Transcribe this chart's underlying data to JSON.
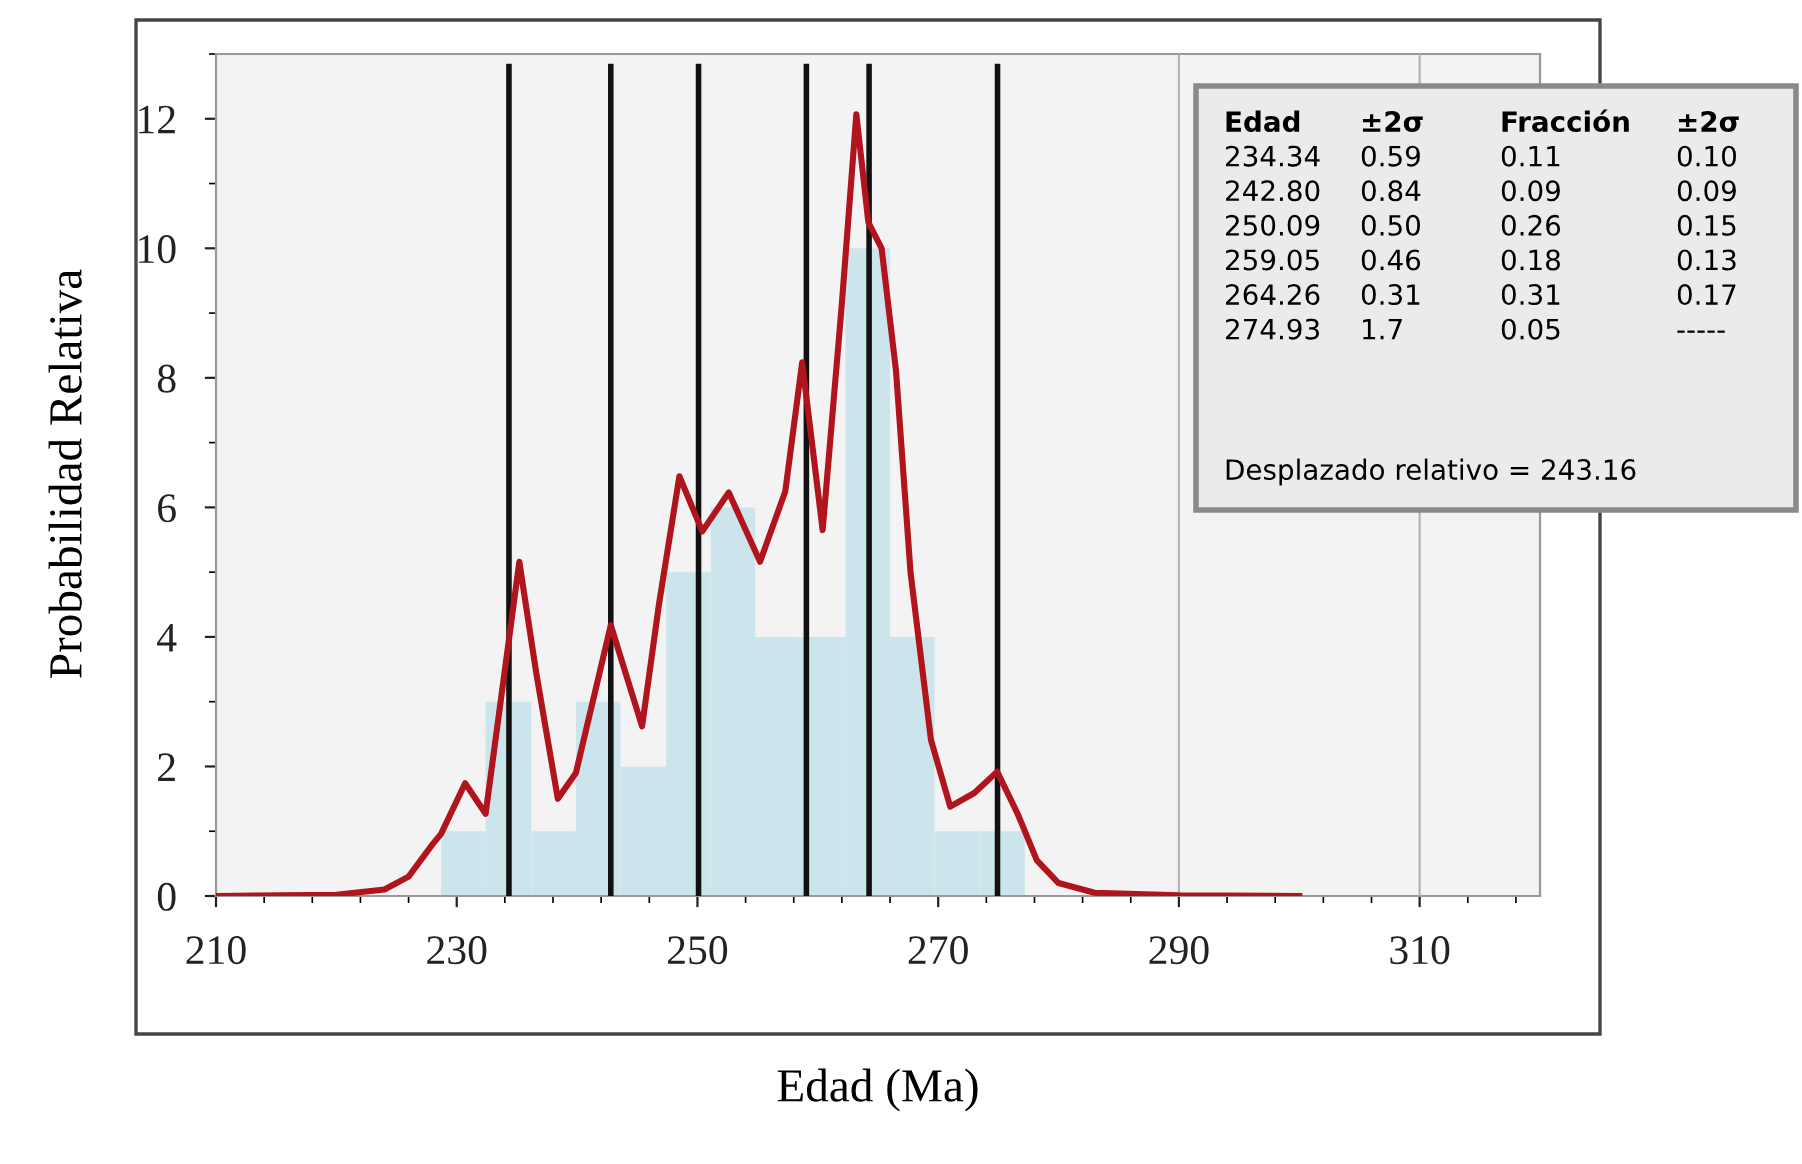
{
  "chart_data": {
    "type": "histogram",
    "xlabel": "Edad (Ma)",
    "ylabel": "Probabilidad Relativa",
    "bins": [
      228.7,
      232.4,
      236.2,
      239.9,
      243.6,
      247.4,
      251.1,
      254.8,
      258.5,
      262.3,
      266.0,
      269.7,
      273.5,
      277.2
    ],
    "values": [
      1,
      3,
      1,
      3,
      2,
      5,
      6,
      4,
      4,
      10,
      4,
      1,
      1
    ],
    "color": "#cce5ec",
    "series": [
      {
        "type": "line",
        "color": "#b0141c",
        "x": [
          210,
          220,
          224,
          226,
          228,
          228.7,
          230.7,
          232.4,
          235.2,
          236.6,
          238.4,
          239.9,
          242.8,
          245.4,
          246.8,
          248.5,
          250.4,
          252.6,
          255.2,
          257.3,
          258.7,
          260.4,
          262.0,
          263.2,
          264.2,
          265.3,
          266.5,
          267.7,
          269.4,
          271.0,
          273.0,
          274.9,
          276.6,
          278.2,
          280,
          283,
          290,
          300
        ],
        "values": [
          0,
          0.02,
          0.1,
          0.3,
          0.8,
          0.96,
          1.74,
          1.27,
          5.16,
          3.45,
          1.5,
          1.9,
          4.18,
          2.62,
          4.5,
          6.48,
          5.63,
          6.23,
          5.16,
          6.25,
          8.24,
          5.65,
          9.15,
          12.07,
          10.4,
          10.0,
          8.1,
          5.0,
          2.41,
          1.38,
          1.59,
          1.92,
          1.27,
          0.55,
          0.2,
          0.05,
          0.01,
          0
        ]
      }
    ],
    "ref_lines": [
      {
        "axis": "x",
        "value": 234.34,
        "color": "#111111"
      },
      {
        "axis": "x",
        "value": 242.8,
        "color": "#111111"
      },
      {
        "axis": "x",
        "value": 250.09,
        "color": "#111111"
      },
      {
        "axis": "x",
        "value": 259.05,
        "color": "#111111"
      },
      {
        "axis": "x",
        "value": 264.26,
        "color": "#111111"
      },
      {
        "axis": "x",
        "value": 274.93,
        "color": "#111111"
      },
      {
        "axis": "x",
        "value": 290,
        "color": "#b4b4b4"
      },
      {
        "axis": "x",
        "value": 310,
        "color": "#b4b4b4"
      }
    ],
    "xlim": [
      210,
      320
    ],
    "xticks": [
      210,
      230,
      250,
      270,
      290,
      310
    ],
    "ylim": [
      0,
      13
    ],
    "yticks": [
      0,
      2,
      4,
      6,
      8,
      10,
      12
    ],
    "annotations": [
      "Edad",
      "±2σ",
      "Fracción",
      "±2σ",
      "234.34",
      "0.59",
      "0.11",
      "0.10",
      "242.80",
      "0.84",
      "0.09",
      "0.09",
      "250.09",
      "0.50",
      "0.26",
      "0.15",
      "259.05",
      "0.46",
      "0.18",
      "0.13",
      "264.26",
      "0.31",
      "0.31",
      "0.17",
      "274.93",
      "1.7",
      "0.05",
      "-----",
      "Desplazado relativo = 243.16"
    ]
  }
}
